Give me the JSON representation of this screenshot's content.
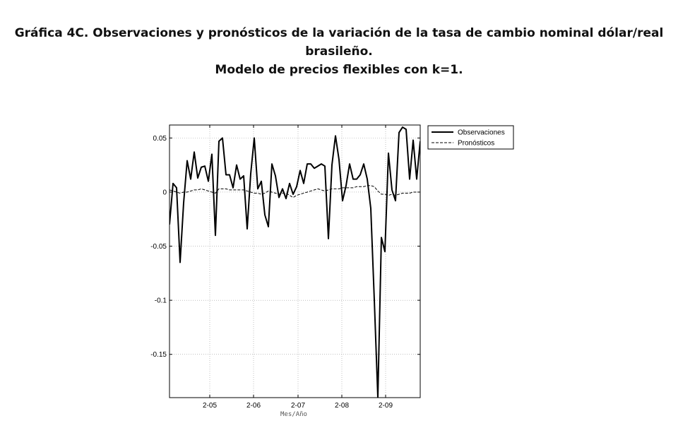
{
  "title_line1": "Gráfica 4C. Observaciones y pronósticos de la variación de la tasa de cambio nominal dólar/real",
  "title_line2": "brasileño.",
  "title_line3": "Modelo de precios flexibles con k=1.",
  "chart_data": {
    "type": "line",
    "xlabel": "Mes/Año",
    "ylabel": "",
    "x_ticks": [
      "2-05",
      "2-06",
      "2-07",
      "2-08",
      "2-09"
    ],
    "y_ticks": [
      "0.05",
      "0",
      "-0.05",
      "-0.1",
      "-0.15"
    ],
    "y_tick_values": [
      0.05,
      0,
      -0.05,
      -0.1,
      -0.15
    ],
    "ylim": [
      -0.19,
      0.062
    ],
    "grid": true,
    "legend_position": "outside-top-right",
    "series": [
      {
        "name": "Observaciones",
        "style": "solid",
        "color": "#000000",
        "values": [
          -0.03,
          0.008,
          0.004,
          -0.065,
          -0.01,
          0.029,
          0.012,
          0.037,
          0.013,
          0.023,
          0.024,
          0.01,
          0.035,
          -0.04,
          0.047,
          0.05,
          0.016,
          0.016,
          0.004,
          0.025,
          0.012,
          0.015,
          -0.034,
          0.017,
          0.05,
          0.003,
          0.01,
          -0.021,
          -0.032,
          0.026,
          0.015,
          -0.005,
          0.003,
          -0.006,
          0.008,
          -0.002,
          0.005,
          0.02,
          0.008,
          0.026,
          0.026,
          0.022,
          0.024,
          0.026,
          0.024,
          -0.043,
          0.025,
          0.052,
          0.03,
          -0.008,
          0.006,
          0.026,
          0.012,
          0.012,
          0.016,
          0.026,
          0.012,
          -0.015,
          -0.1,
          -0.19,
          -0.042,
          -0.055,
          0.036,
          0.002,
          -0.008,
          0.055,
          0.06,
          0.058,
          0.012,
          0.048,
          0.012,
          0.047
        ]
      },
      {
        "name": "Pronósticos",
        "style": "dashed",
        "color": "#000000",
        "values": [
          0.002,
          0.001,
          0.0,
          -0.001,
          0.0,
          0.0,
          0.001,
          0.002,
          0.002,
          0.003,
          0.002,
          0.001,
          0.0,
          -0.001,
          0.003,
          0.003,
          0.003,
          0.002,
          0.002,
          0.002,
          0.002,
          0.002,
          0.001,
          0.0,
          -0.001,
          -0.001,
          -0.002,
          -0.001,
          0.001,
          0.0,
          -0.001,
          -0.002,
          -0.001,
          -0.001,
          -0.003,
          -0.005,
          -0.003,
          -0.002,
          -0.001,
          0.0,
          0.001,
          0.002,
          0.003,
          0.002,
          0.001,
          0.002,
          0.003,
          0.003,
          0.003,
          0.004,
          0.004,
          0.004,
          0.004,
          0.005,
          0.005,
          0.005,
          0.006,
          0.006,
          0.005,
          0.001,
          -0.002,
          -0.002,
          -0.003,
          -0.002,
          -0.003,
          -0.002,
          -0.001,
          -0.001,
          -0.001,
          0.0,
          0.0,
          0.0
        ]
      }
    ]
  }
}
